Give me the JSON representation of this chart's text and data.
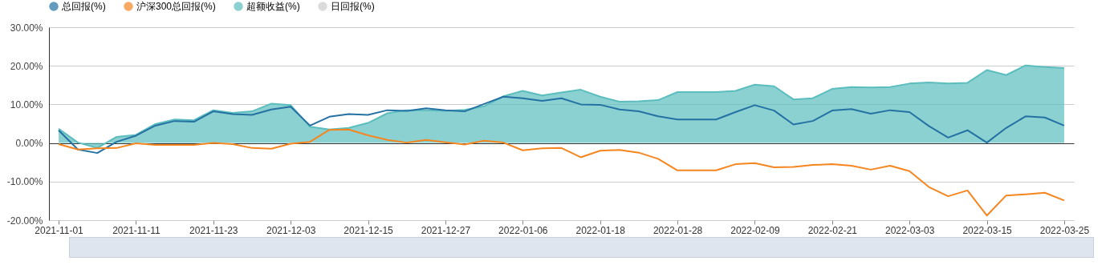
{
  "chart_data": {
    "type": "line",
    "categories": [
      "2021-11-01",
      null,
      null,
      null,
      "2021-11-11",
      null,
      null,
      null,
      "2021-11-23",
      null,
      null,
      null,
      "2021-12-03",
      null,
      null,
      null,
      "2021-12-15",
      null,
      null,
      null,
      "2021-12-27",
      null,
      null,
      null,
      "2022-01-06",
      null,
      null,
      null,
      "2022-01-18",
      null,
      null,
      null,
      "2022-01-28",
      null,
      null,
      null,
      "2022-02-09",
      null,
      null,
      null,
      "2022-02-21",
      null,
      null,
      null,
      "2022-03-03",
      null,
      null,
      null,
      "2022-03-15",
      null,
      null,
      null,
      "2022-03-25"
    ],
    "series": [
      {
        "name": "总回报(%)",
        "color": "#2471a3",
        "values": [
          3.3,
          -1.7,
          -2.6,
          0.3,
          1.9,
          4.5,
          5.7,
          5.5,
          8.2,
          7.5,
          7.3,
          8.7,
          9.4,
          4.5,
          6.8,
          7.5,
          7.3,
          8.5,
          8.3,
          9.0,
          8.5,
          8.2,
          10.1,
          12.0,
          11.6,
          10.9,
          11.6,
          10.0,
          9.9,
          8.7,
          8.2,
          6.9,
          6.1,
          6.1,
          6.1,
          8.0,
          9.8,
          8.4,
          4.8,
          5.7,
          8.4,
          8.8,
          7.6,
          8.5,
          8.0,
          4.4,
          1.4,
          3.3,
          0.1,
          3.9,
          6.9,
          6.6,
          4.5
        ]
      },
      {
        "name": "沪深300总回报(%)",
        "color": "#f5861f",
        "values": [
          -0.3,
          -1.7,
          -1.4,
          -1.3,
          -0.1,
          -0.5,
          -0.5,
          -0.5,
          0.0,
          -0.3,
          -1.3,
          -1.5,
          -0.2,
          0.3,
          3.4,
          3.5,
          2.0,
          0.8,
          0.1,
          0.8,
          0.2,
          -0.4,
          0.6,
          0.1,
          -1.9,
          -1.4,
          -1.3,
          -3.7,
          -2.0,
          -1.8,
          -2.5,
          -4.1,
          -7.1,
          -7.1,
          -7.1,
          -5.5,
          -5.2,
          -6.3,
          -6.2,
          -5.7,
          -5.5,
          -5.9,
          -6.9,
          -5.9,
          -7.3,
          -11.4,
          -13.8,
          -12.3,
          -18.8,
          -13.6,
          -13.3,
          -12.9,
          -14.9
        ]
      },
      {
        "name": "超额收益(%)",
        "type": "area",
        "color": "#5bbdbe",
        "values": [
          3.7,
          0.1,
          -1.3,
          1.6,
          2.1,
          4.9,
          6.1,
          5.9,
          8.5,
          7.8,
          8.2,
          10.2,
          9.8,
          4.2,
          3.5,
          3.9,
          5.2,
          7.7,
          8.5,
          8.5,
          8.3,
          8.6,
          9.5,
          12.1,
          13.5,
          12.3,
          13.1,
          13.8,
          12.0,
          10.7,
          10.8,
          11.1,
          13.2,
          13.2,
          13.2,
          13.5,
          15.1,
          14.7,
          11.3,
          11.6,
          14.0,
          14.5,
          14.4,
          14.5,
          15.4,
          15.7,
          15.4,
          15.6,
          18.9,
          17.6,
          20.1,
          19.7,
          19.4
        ]
      },
      {
        "name": "日回报(%)",
        "type": "bar",
        "color": "#cccccc",
        "values": [
          null,
          null,
          null,
          null,
          null,
          null,
          null,
          null,
          null,
          null,
          null,
          null,
          null,
          null,
          null,
          null,
          null,
          null,
          null,
          null,
          null,
          null,
          null,
          null,
          null,
          null,
          null,
          null,
          null,
          null,
          null,
          null,
          null,
          null,
          null,
          null,
          null,
          null,
          null,
          null,
          null,
          null,
          null,
          null,
          null,
          null,
          null,
          null,
          null,
          null,
          null,
          null,
          null
        ]
      }
    ],
    "ylim": [
      -20,
      30
    ],
    "yticks": [
      {
        "value": -20,
        "label": "-20.00%"
      },
      {
        "value": -10,
        "label": "-10.00%"
      },
      {
        "value": 0,
        "label": "0.00%"
      },
      {
        "value": 10,
        "label": "10.00%"
      },
      {
        "value": 20,
        "label": "20.00%"
      },
      {
        "value": 30,
        "label": "30.00%"
      }
    ],
    "grid": "y",
    "legend": "top",
    "marker": "none"
  }
}
